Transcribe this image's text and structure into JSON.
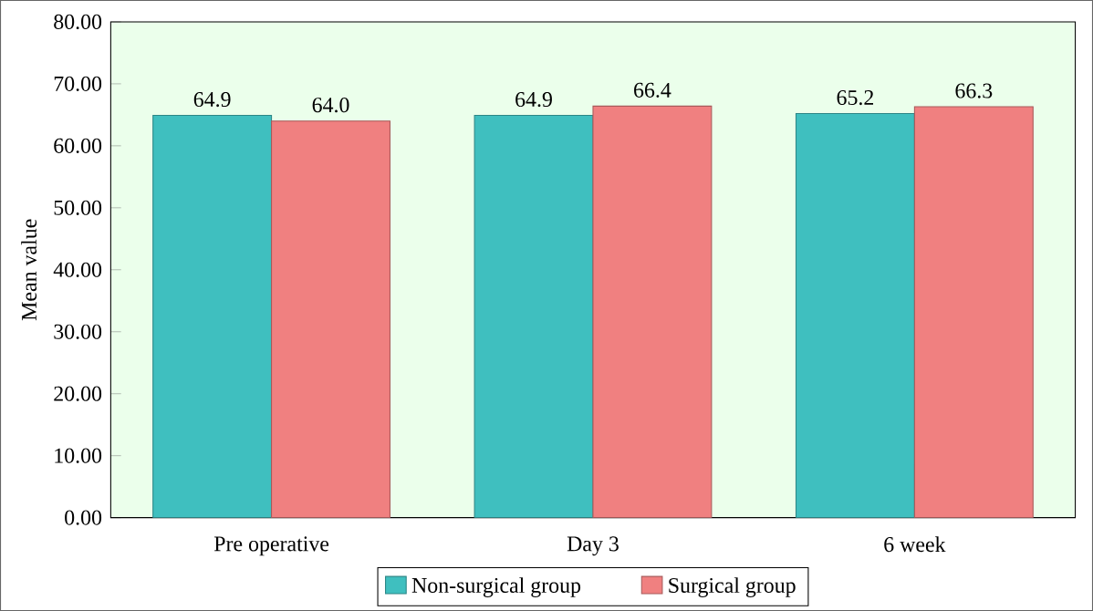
{
  "chart_data": {
    "type": "bar",
    "ylabel": "Mean value",
    "categories": [
      "Pre operative",
      "Day 3",
      "6 week"
    ],
    "series": [
      {
        "name": "Non-surgical group",
        "color": "#3fbfbf",
        "values": [
          64.9,
          64.9,
          65.2
        ],
        "value_labels": [
          "64.9",
          "64.9",
          "65.2"
        ]
      },
      {
        "name": "Surgical group",
        "color": "#f08080",
        "values": [
          64.0,
          66.4,
          66.3
        ],
        "value_labels": [
          "64.0",
          "66.4",
          "66.3"
        ]
      }
    ],
    "ylim": [
      0,
      80
    ],
    "yticks": [
      {
        "value": 0,
        "label": "0.00"
      },
      {
        "value": 10,
        "label": "10.00"
      },
      {
        "value": 20,
        "label": "20.00"
      },
      {
        "value": 30,
        "label": "30.00"
      },
      {
        "value": 40,
        "label": "40.00"
      },
      {
        "value": 50,
        "label": "50.00"
      },
      {
        "value": 60,
        "label": "60.00"
      },
      {
        "value": 70,
        "label": "70.00"
      },
      {
        "value": 80,
        "label": "80.00"
      }
    ],
    "legend": "bottom",
    "grid": false
  }
}
